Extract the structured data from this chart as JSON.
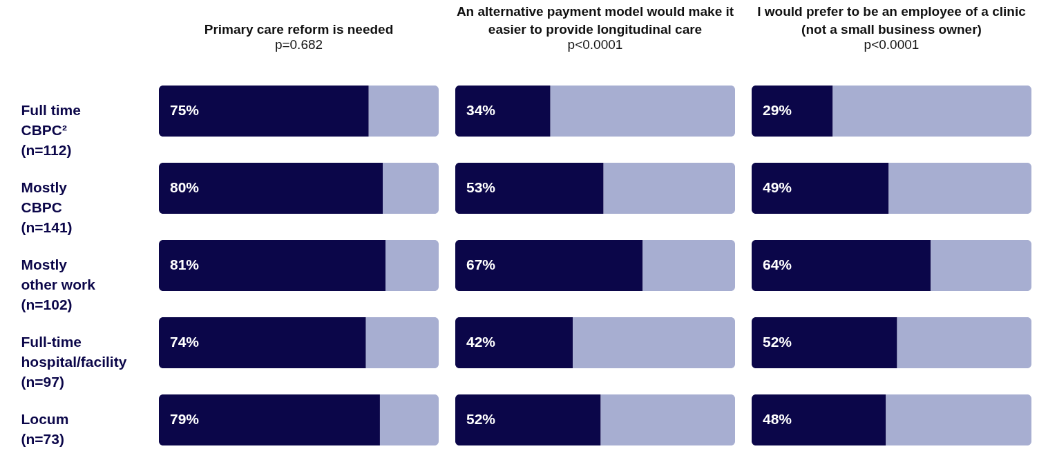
{
  "chart_data": [
    {
      "type": "bar",
      "orientation": "horizontal",
      "stacked": true,
      "title": "Primary care reform is needed",
      "subtitle": "p=0.682",
      "categories": [
        "Full time\nCBPC²\n(n=112)",
        "Mostly\nCBPC\n(n=141)",
        "Mostly\nother work\n(n=102)",
        "Full-time\nhospital/facility\n(n=97)",
        "Locum\n(n=73)"
      ],
      "xlim": [
        0,
        100
      ],
      "tick_labels": "y",
      "series": [
        {
          "color": "#0b0649",
          "values": [
            75,
            80,
            81,
            74,
            79
          ],
          "value_labels": [
            "75%",
            "80%",
            "81%",
            "74%",
            "79%"
          ]
        },
        {
          "color": "#a7aed1",
          "values": [
            25,
            20,
            19,
            26,
            21
          ]
        }
      ]
    },
    {
      "type": "bar",
      "orientation": "horizontal",
      "stacked": true,
      "title": "An alternative payment model would make it easier to provide longitudinal care",
      "subtitle": "p<0.0001",
      "categories": [
        null,
        null,
        null,
        null,
        null
      ],
      "xlim": [
        0,
        100
      ],
      "tick_labels": false,
      "series": [
        {
          "color": "#0b0649",
          "values": [
            34,
            53,
            67,
            42,
            52
          ],
          "value_labels": [
            "34%",
            "53%",
            "67%",
            "42%",
            "52%"
          ]
        },
        {
          "color": "#a7aed1",
          "values": [
            66,
            47,
            33,
            58,
            48
          ]
        }
      ]
    },
    {
      "type": "bar",
      "orientation": "horizontal",
      "stacked": true,
      "title": "I would prefer to be an employee of a clinic (not a small business owner)",
      "subtitle": "p<0.0001",
      "categories": [
        null,
        null,
        null,
        null,
        null
      ],
      "xlim": [
        0,
        100
      ],
      "tick_labels": false,
      "series": [
        {
          "color": "#0b0649",
          "values": [
            29,
            49,
            64,
            52,
            48
          ],
          "value_labels": [
            "29%",
            "49%",
            "64%",
            "52%",
            "48%"
          ]
        },
        {
          "color": "#a7aed1",
          "values": [
            71,
            51,
            36,
            48,
            52
          ]
        }
      ]
    }
  ]
}
